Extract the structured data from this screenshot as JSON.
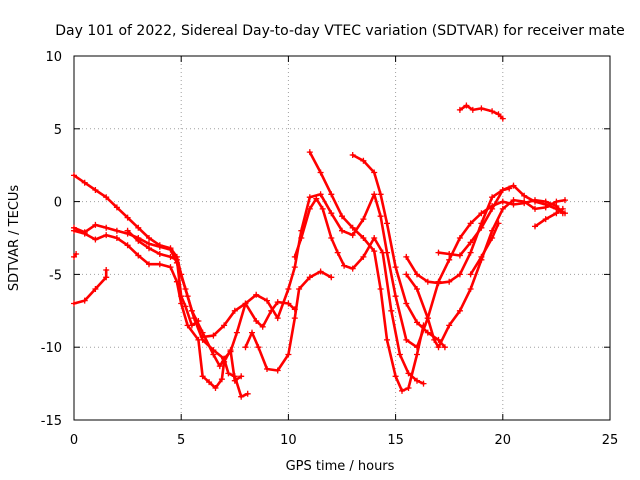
{
  "chart_data": {
    "type": "scatter",
    "title": "Day 101 of 2022, Sidereal Day-to-day VTEC variation (SDTVAR) for receiver mate",
    "xlabel": "GPS time / hours",
    "ylabel": "SDTVAR / TECUs",
    "xlim": [
      0,
      25
    ],
    "ylim": [
      -15,
      10
    ],
    "x_ticks": [
      0,
      5,
      10,
      15,
      20,
      25
    ],
    "y_ticks": [
      -15,
      -10,
      -5,
      0,
      5,
      10
    ],
    "x_tick_labels": [
      "0",
      "5",
      "10",
      "15",
      "20",
      "25"
    ],
    "y_tick_labels": [
      "-15",
      "-10",
      "-5",
      "0",
      "5",
      "10"
    ],
    "grid": true,
    "marker": "plus",
    "color": "#ff0000",
    "series": [
      {
        "points": [
          [
            0.0,
            1.8
          ],
          [
            0.5,
            1.3
          ],
          [
            1.0,
            0.8
          ],
          [
            1.5,
            0.3
          ],
          [
            2.0,
            -0.4
          ],
          [
            2.5,
            -1.1
          ],
          [
            3.0,
            -1.8
          ],
          [
            3.5,
            -2.5
          ],
          [
            4.0,
            -3.0
          ],
          [
            4.5,
            -3.2
          ],
          [
            4.8,
            -3.8
          ],
          [
            5.0,
            -5.0
          ],
          [
            5.3,
            -6.5
          ],
          [
            5.6,
            -8.0
          ],
          [
            6.0,
            -9.5
          ],
          [
            6.5,
            -10.2
          ],
          [
            7.0,
            -10.8
          ],
          [
            7.3,
            -10.3
          ],
          [
            7.6,
            -9.0
          ],
          [
            8.0,
            -7.0
          ],
          [
            8.5,
            -6.4
          ],
          [
            9.0,
            -6.8
          ],
          [
            9.5,
            -8.0
          ],
          [
            10.0,
            -6.0
          ],
          [
            10.3,
            -4.5
          ],
          [
            10.6,
            -2.0
          ],
          [
            11.0,
            0.3
          ],
          [
            11.5,
            0.5
          ],
          [
            12.0,
            -0.8
          ],
          [
            12.5,
            -2.0
          ],
          [
            13.0,
            -2.3
          ],
          [
            13.5,
            -1.2
          ],
          [
            14.0,
            0.5
          ],
          [
            14.3,
            -1.0
          ],
          [
            14.6,
            -3.5
          ],
          [
            15.0,
            -6.5
          ],
          [
            15.5,
            -9.5
          ],
          [
            16.0,
            -10.0
          ],
          [
            16.5,
            -8.0
          ],
          [
            17.0,
            -5.5
          ],
          [
            17.5,
            -4.0
          ],
          [
            18.0,
            -2.5
          ],
          [
            18.5,
            -1.5
          ],
          [
            19.0,
            -0.8
          ],
          [
            19.5,
            -0.3
          ],
          [
            20.0,
            0.0
          ],
          [
            20.5,
            -0.2
          ],
          [
            21.0,
            -0.1
          ],
          [
            21.5,
            0.1
          ],
          [
            22.0,
            0.0
          ],
          [
            22.5,
            -0.3
          ],
          [
            22.8,
            -0.8
          ]
        ]
      },
      {
        "points": [
          [
            0.0,
            -1.8
          ],
          [
            0.5,
            -2.1
          ],
          [
            1.0,
            -1.6
          ],
          [
            1.5,
            -1.8
          ],
          [
            2.0,
            -2.0
          ],
          [
            2.5,
            -2.2
          ],
          [
            3.0,
            -2.5
          ],
          [
            3.5,
            -2.9
          ],
          [
            4.0,
            -3.1
          ],
          [
            4.5,
            -3.3
          ],
          [
            4.8,
            -4.2
          ],
          [
            5.2,
            -6.0
          ],
          [
            5.5,
            -7.5
          ],
          [
            6.0,
            -9.0
          ],
          [
            6.5,
            -10.5
          ],
          [
            6.8,
            -11.3
          ],
          [
            7.0,
            -10.8
          ],
          [
            7.2,
            -11.8
          ],
          [
            7.5,
            -12.0
          ],
          [
            7.8,
            -13.4
          ],
          [
            8.1,
            -13.2
          ]
        ]
      },
      {
        "points": [
          [
            0.0,
            -2.0
          ],
          [
            0.5,
            -2.2
          ],
          [
            1.0,
            -2.6
          ],
          [
            1.5,
            -2.3
          ],
          [
            2.0,
            -2.5
          ],
          [
            2.5,
            -3.0
          ],
          [
            3.0,
            -3.7
          ],
          [
            3.5,
            -4.3
          ],
          [
            4.0,
            -4.3
          ],
          [
            4.5,
            -4.5
          ],
          [
            4.8,
            -5.5
          ],
          [
            5.0,
            -7.0
          ],
          [
            5.3,
            -8.5
          ],
          [
            5.8,
            -9.5
          ],
          [
            6.0,
            -12.0
          ],
          [
            6.3,
            -12.4
          ],
          [
            6.6,
            -12.8
          ],
          [
            6.9,
            -12.2
          ],
          [
            7.0,
            -11.0
          ],
          [
            7.3,
            -10.2
          ],
          [
            7.5,
            -12.3
          ],
          [
            7.8,
            -12.0
          ]
        ]
      },
      {
        "points": [
          [
            2.5,
            -2.0
          ],
          [
            3.0,
            -2.7
          ],
          [
            3.5,
            -3.2
          ],
          [
            4.0,
            -3.6
          ],
          [
            4.5,
            -3.8
          ],
          [
            4.8,
            -4.0
          ],
          [
            5.0,
            -6.5
          ],
          [
            5.2,
            -7.2
          ],
          [
            5.5,
            -8.5
          ],
          [
            5.8,
            -8.2
          ]
        ]
      },
      {
        "points": [
          [
            0.0,
            -7.0
          ],
          [
            0.5,
            -6.8
          ],
          [
            1.0,
            -6.0
          ],
          [
            1.5,
            -5.2
          ],
          [
            1.5,
            -4.7
          ]
        ]
      },
      {
        "points": [
          [
            6.0,
            -9.3
          ],
          [
            6.5,
            -9.2
          ],
          [
            7.0,
            -8.5
          ],
          [
            7.5,
            -7.5
          ],
          [
            8.0,
            -7.0
          ],
          [
            8.5,
            -8.2
          ],
          [
            8.8,
            -8.6
          ],
          [
            9.2,
            -7.5
          ],
          [
            9.5,
            -6.9
          ],
          [
            10.0,
            -7.0
          ],
          [
            10.3,
            -7.4
          ]
        ]
      },
      {
        "points": [
          [
            8.0,
            -10.0
          ],
          [
            8.3,
            -9.0
          ],
          [
            8.6,
            -10.0
          ],
          [
            9.0,
            -11.5
          ],
          [
            9.5,
            -11.6
          ],
          [
            10.0,
            -10.5
          ],
          [
            10.3,
            -8.0
          ],
          [
            10.5,
            -6.0
          ],
          [
            11.0,
            -5.2
          ],
          [
            11.5,
            -4.8
          ],
          [
            12.0,
            -5.2
          ]
        ]
      },
      {
        "points": [
          [
            10.3,
            -3.8
          ],
          [
            10.6,
            -2.5
          ],
          [
            11.0,
            -0.5
          ],
          [
            11.3,
            0.2
          ],
          [
            11.6,
            -0.5
          ],
          [
            12.0,
            -2.5
          ],
          [
            12.3,
            -3.5
          ],
          [
            12.6,
            -4.4
          ],
          [
            13.0,
            -4.6
          ],
          [
            13.5,
            -3.8
          ],
          [
            14.0,
            -2.5
          ],
          [
            14.4,
            -3.5
          ],
          [
            14.8,
            -7.5
          ],
          [
            15.2,
            -10.5
          ],
          [
            15.6,
            -11.8
          ],
          [
            16.0,
            -12.3
          ],
          [
            16.3,
            -12.5
          ]
        ]
      },
      {
        "points": [
          [
            11.0,
            3.4
          ],
          [
            11.5,
            2.0
          ],
          [
            12.0,
            0.5
          ],
          [
            12.5,
            -1.0
          ],
          [
            13.0,
            -1.8
          ],
          [
            13.5,
            -2.5
          ],
          [
            14.0,
            -3.4
          ],
          [
            14.3,
            -6.0
          ],
          [
            14.6,
            -9.5
          ],
          [
            15.0,
            -12.0
          ],
          [
            15.3,
            -13.0
          ],
          [
            15.6,
            -12.8
          ],
          [
            16.0,
            -10.5
          ],
          [
            16.3,
            -8.5
          ]
        ]
      },
      {
        "points": [
          [
            13.0,
            3.2
          ],
          [
            13.5,
            2.8
          ],
          [
            14.0,
            2.0
          ],
          [
            14.3,
            0.5
          ],
          [
            14.6,
            -1.5
          ],
          [
            15.0,
            -4.5
          ],
          [
            15.5,
            -7.0
          ],
          [
            16.0,
            -8.3
          ],
          [
            16.5,
            -9.0
          ],
          [
            17.0,
            -9.5
          ],
          [
            17.3,
            -10.0
          ]
        ]
      },
      {
        "points": [
          [
            15.5,
            -5.0
          ],
          [
            16.0,
            -6.0
          ],
          [
            16.5,
            -8.0
          ],
          [
            16.8,
            -9.5
          ],
          [
            17.0,
            -10.0
          ],
          [
            17.5,
            -8.5
          ],
          [
            18.0,
            -7.5
          ],
          [
            18.5,
            -6.0
          ],
          [
            19.0,
            -4.0
          ],
          [
            19.5,
            -2.0
          ],
          [
            20.0,
            -0.5
          ],
          [
            20.5,
            0.1
          ],
          [
            21.0,
            0.0
          ],
          [
            21.5,
            -0.5
          ],
          [
            22.0,
            -0.4
          ],
          [
            22.5,
            0.0
          ],
          [
            22.9,
            0.1
          ]
        ]
      },
      {
        "points": [
          [
            15.5,
            -3.8
          ],
          [
            16.0,
            -5.0
          ],
          [
            16.5,
            -5.5
          ],
          [
            17.0,
            -5.6
          ],
          [
            17.5,
            -5.5
          ],
          [
            18.0,
            -5.0
          ],
          [
            18.5,
            -3.5
          ],
          [
            19.0,
            -1.5
          ],
          [
            19.5,
            0.3
          ],
          [
            20.0,
            0.8
          ],
          [
            20.3,
            0.9
          ]
        ]
      },
      {
        "points": [
          [
            17.0,
            -3.5
          ],
          [
            17.5,
            -3.6
          ],
          [
            18.0,
            -3.7
          ],
          [
            18.5,
            -2.8
          ],
          [
            19.0,
            -1.8
          ],
          [
            19.5,
            -0.5
          ],
          [
            20.0,
            0.8
          ],
          [
            20.5,
            1.1
          ],
          [
            21.0,
            0.4
          ],
          [
            21.5,
            0.0
          ],
          [
            22.0,
            -0.2
          ],
          [
            22.5,
            -0.5
          ],
          [
            22.9,
            -0.8
          ]
        ]
      },
      {
        "points": [
          [
            18.5,
            -5.0
          ],
          [
            19.0,
            -3.8
          ],
          [
            19.5,
            -2.5
          ],
          [
            19.8,
            -1.5
          ]
        ]
      },
      {
        "points": [
          [
            18.0,
            6.3
          ],
          [
            18.3,
            6.6
          ],
          [
            18.6,
            6.3
          ],
          [
            19.0,
            6.4
          ],
          [
            19.5,
            6.2
          ],
          [
            19.8,
            6.0
          ],
          [
            20.0,
            5.7
          ]
        ]
      },
      {
        "points": [
          [
            21.5,
            -1.7
          ],
          [
            22.0,
            -1.2
          ],
          [
            22.5,
            -0.8
          ],
          [
            22.8,
            -0.5
          ]
        ]
      },
      {
        "points": [
          [
            0.0,
            -3.8
          ],
          [
            0.1,
            -3.6
          ]
        ]
      }
    ]
  }
}
